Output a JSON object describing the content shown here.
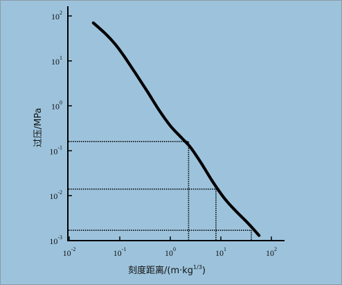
{
  "chart_data": {
    "type": "line",
    "title": "",
    "xlabel": "刻度距离/(m·kg",
    "xlabel_exp": "1/3",
    "xlabel_tail": ")",
    "ylabel": "过压/MPa",
    "x_scale": "log",
    "y_scale": "log",
    "xlim": [
      0.01,
      100
    ],
    "ylim": [
      0.001,
      100
    ],
    "x_ticks": [
      {
        "value": 0.01,
        "base": "10",
        "exp": "-2"
      },
      {
        "value": 0.1,
        "base": "10",
        "exp": "-1"
      },
      {
        "value": 1,
        "base": "10",
        "exp": "0"
      },
      {
        "value": 10,
        "base": "10",
        "exp": "1"
      },
      {
        "value": 100,
        "base": "10",
        "exp": "2"
      }
    ],
    "y_ticks": [
      {
        "value": 0.001,
        "base": "10",
        "exp": "-3"
      },
      {
        "value": 0.01,
        "base": "10",
        "exp": "-2"
      },
      {
        "value": 0.1,
        "base": "10",
        "exp": "-1"
      },
      {
        "value": 1,
        "base": "10",
        "exp": "0"
      },
      {
        "value": 10,
        "base": "10",
        "exp": "1"
      },
      {
        "value": 100,
        "base": "10",
        "exp": "2"
      }
    ],
    "series": [
      {
        "color": "#000000",
        "x": [
          0.03,
          0.05,
          0.08,
          0.12,
          0.2,
          0.35,
          0.6,
          1.0,
          1.7,
          2.5,
          4.0,
          7.0,
          12.0,
          20.0,
          35.0,
          57.0
        ],
        "y": [
          70,
          42,
          24,
          13,
          5.5,
          2.1,
          0.8,
          0.36,
          0.19,
          0.12,
          0.055,
          0.02,
          0.0085,
          0.0045,
          0.0024,
          0.0013
        ]
      }
    ],
    "reference_lines": [
      {
        "x": 2.3,
        "y": 0.16
      },
      {
        "x": 8.0,
        "y": 0.014
      },
      {
        "x": 40.0,
        "y": 0.0017
      }
    ],
    "grid": false,
    "colors": {
      "background": "#9dc3dc",
      "axis": "#000000",
      "reference": "#000000"
    }
  }
}
